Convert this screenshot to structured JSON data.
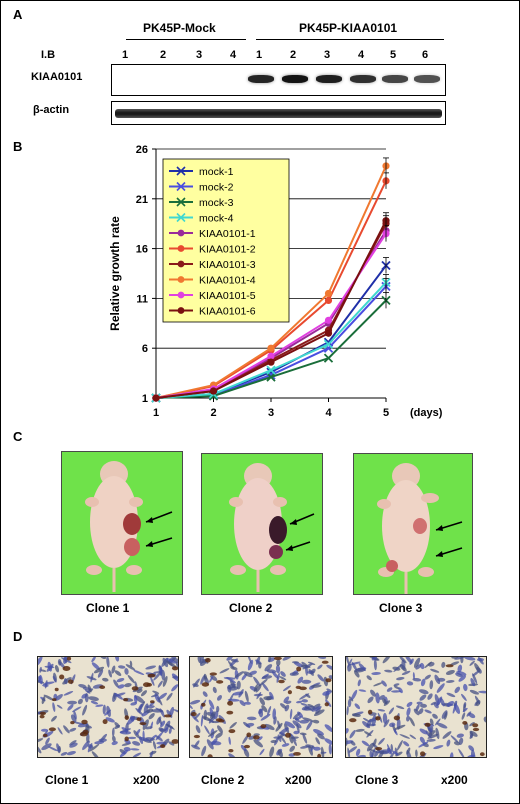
{
  "panels": {
    "a": {
      "label": "A",
      "group_mock": "PK45P-Mock",
      "group_kiaa": "PK45P-KIAA0101",
      "ib_label": "I.B",
      "mock_lanes": [
        "1",
        "2",
        "3",
        "4"
      ],
      "kiaa_lanes": [
        "1",
        "2",
        "3",
        "4",
        "5",
        "6"
      ],
      "row1_label": "KIAA0101",
      "row2_label": "β-actin",
      "band_intensity": [
        0,
        0,
        0,
        0,
        0.85,
        1.0,
        0.9,
        0.75,
        0.55,
        0.45
      ]
    },
    "b": {
      "label": "B"
    },
    "c": {
      "label": "C",
      "clones": [
        "Clone 1",
        "Clone 2",
        "Clone 3"
      ]
    },
    "d": {
      "label": "D",
      "clones": [
        "Clone 1",
        "Clone 2",
        "Clone 3"
      ],
      "magnification": [
        "x200",
        "x200",
        "x200"
      ]
    }
  },
  "chart_data": {
    "type": "line",
    "ylabel": "Relative growth rate",
    "x_unit": "(days)",
    "x": [
      1,
      2,
      3,
      4,
      5
    ],
    "yticks": [
      1,
      6,
      11,
      16,
      21,
      26
    ],
    "ylim": [
      1,
      26
    ],
    "grid": true,
    "legend_position": "upper-left",
    "series": [
      {
        "name": "mock-1",
        "color": "#1f2fa8",
        "marker": "x",
        "values": [
          1,
          1.4,
          3.6,
          6.6,
          14.3
        ]
      },
      {
        "name": "mock-2",
        "color": "#4a4ee0",
        "marker": "x",
        "values": [
          1,
          1.3,
          3.3,
          6.0,
          12.2
        ]
      },
      {
        "name": "mock-3",
        "color": "#1a6e3a",
        "marker": "x",
        "values": [
          1,
          1.2,
          3.1,
          5.0,
          10.8
        ]
      },
      {
        "name": "mock-4",
        "color": "#40d8d0",
        "marker": "x",
        "values": [
          1,
          1.4,
          3.8,
          6.4,
          12.6
        ]
      },
      {
        "name": "KIAA0101-1",
        "color": "#9a2a9a",
        "marker": "o",
        "values": [
          1,
          1.8,
          5.0,
          8.5,
          17.8
        ]
      },
      {
        "name": "KIAA0101-2",
        "color": "#e84a30",
        "marker": "o",
        "values": [
          1,
          2.2,
          5.8,
          10.8,
          22.8
        ]
      },
      {
        "name": "KIAA0101-3",
        "color": "#8a1a1a",
        "marker": "o",
        "values": [
          1,
          1.7,
          4.8,
          7.8,
          18.5
        ]
      },
      {
        "name": "KIAA0101-4",
        "color": "#f07830",
        "marker": "o",
        "values": [
          1,
          2.3,
          6.0,
          11.5,
          24.3
        ]
      },
      {
        "name": "KIAA0101-5",
        "color": "#e040e0",
        "marker": "o",
        "values": [
          1,
          1.9,
          5.2,
          8.8,
          17.5
        ]
      },
      {
        "name": "KIAA0101-6",
        "color": "#7a1010",
        "marker": "o",
        "values": [
          1,
          1.7,
          4.6,
          7.5,
          18.8
        ]
      }
    ]
  }
}
